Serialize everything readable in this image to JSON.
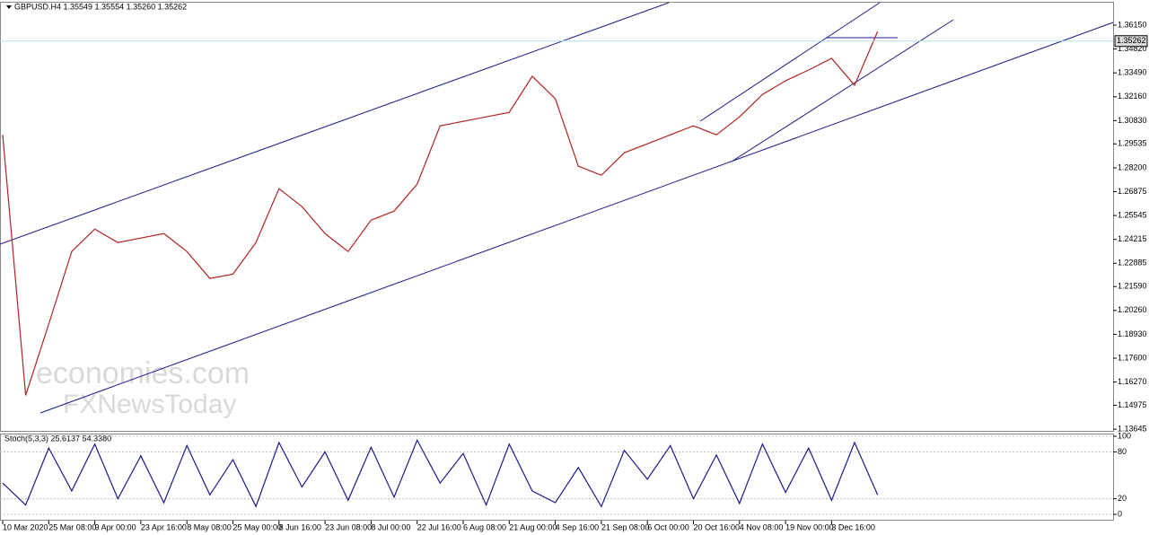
{
  "chart_data": [
    {
      "type": "line",
      "title": "GBPUSD.H4  1.35549 1.35554 1.35260 1.35262",
      "watermark": [
        "economies.com",
        "FXNewsToday"
      ],
      "categories": [
        "10 Mar 2020",
        null,
        "25 Mar 08:00",
        null,
        "9 Apr 00:00",
        null,
        "23 Apr 16:00",
        null,
        "8 May 08:00",
        null,
        "25 May 00:00",
        null,
        "8 Jun 16:00",
        null,
        "23 Jun 08:00",
        null,
        "8 Jul 00:00",
        null,
        "22 Jul 16:00",
        null,
        "6 Aug 08:00",
        null,
        "21 Aug 00:00",
        null,
        "4 Sep 16:00",
        null,
        "21 Sep 08:00",
        null,
        "6 Oct 00:00",
        null,
        "20 Oct 16:00",
        null,
        "4 Nov 08:00",
        null,
        "19 Nov 00:00",
        null,
        "3 Dec 16:00",
        null,
        null
      ],
      "values": [
        1.3004,
        1.1553,
        1.195,
        1.2354,
        1.2479,
        1.2404,
        1.2429,
        1.2454,
        1.2354,
        1.2204,
        1.2228,
        1.2404,
        1.2704,
        1.2604,
        1.2454,
        1.2354,
        1.2529,
        1.2579,
        1.2729,
        1.3054,
        1.3079,
        1.3104,
        1.3129,
        1.333,
        1.3205,
        1.2829,
        1.2779,
        1.2904,
        1.2954,
        1.3004,
        1.3054,
        1.3004,
        1.3104,
        1.3229,
        1.3305,
        1.3365,
        1.343,
        1.328,
        1.358
      ],
      "color": "#b22222",
      "last_price": 1.35262,
      "ylim": [
        1.1355,
        1.3745
      ],
      "yticks": [
        {
          "value": 1.3615,
          "label": "1.36150"
        },
        {
          "value": 1.3482,
          "label": "1.34820"
        },
        {
          "value": 1.3349,
          "label": "1.33490"
        },
        {
          "value": 1.3216,
          "label": "1.32160"
        },
        {
          "value": 1.3083,
          "label": "1.30830"
        },
        1.29535,
        {
          "value": 1.282,
          "label": "1.28200"
        },
        1.26875,
        1.25545,
        1.24215,
        1.22885,
        {
          "value": 1.2159,
          "label": "1.21590"
        },
        {
          "value": 1.2026,
          "label": "1.20260"
        },
        {
          "value": 1.1893,
          "label": "1.18930"
        },
        {
          "value": 1.176,
          "label": "1.17600"
        },
        {
          "value": 1.1627,
          "label": "1.16270"
        },
        1.14975,
        1.13645
      ],
      "grid": false
    },
    {
      "type": "line",
      "title": "Stoch(5,3,3) 25.6137 54.3380",
      "values": [
        40,
        12,
        85,
        30,
        90,
        20,
        75,
        15,
        88,
        25,
        70,
        10,
        92,
        35,
        80,
        18,
        86,
        22,
        95,
        40,
        78,
        12,
        90,
        30,
        15,
        60,
        10,
        82,
        45,
        88,
        20,
        76,
        14,
        90,
        28,
        85,
        18,
        92,
        25
      ],
      "color": "#1a1a8c",
      "ylim": [
        0,
        100
      ],
      "yticks": [
        100,
        80,
        20,
        0
      ],
      "grid": true
    }
  ]
}
